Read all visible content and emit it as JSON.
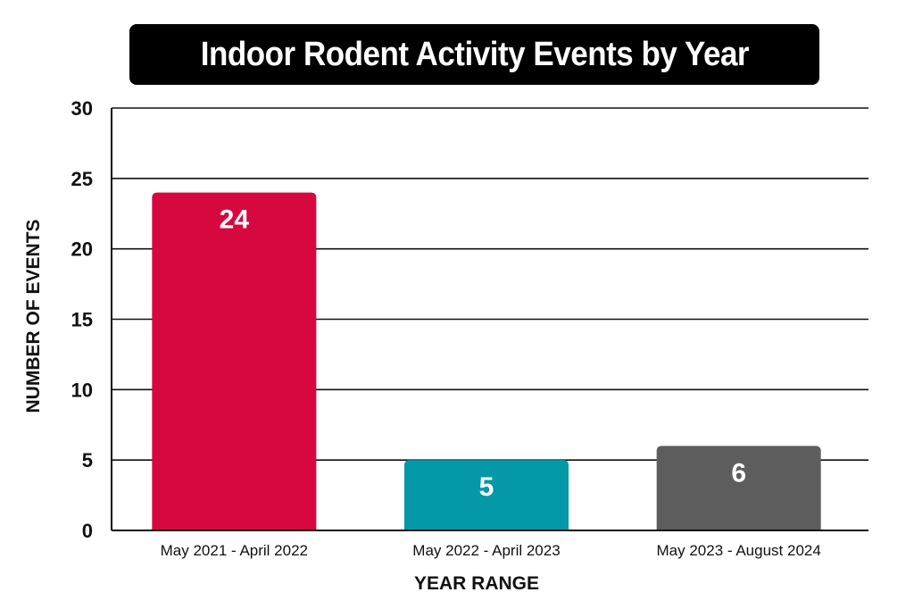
{
  "chart_data": {
    "type": "bar",
    "title": "Indoor Rodent Activity Events by Year",
    "xlabel": "YEAR RANGE",
    "ylabel": "NUMBER OF EVENTS",
    "categories": [
      "May 2021 - April 2022",
      "May 2022 - April 2023",
      "May 2023 - August 2024"
    ],
    "values": [
      24,
      5,
      6
    ],
    "data_labels": [
      "24",
      "5",
      "6"
    ],
    "colors": [
      "#d7073f",
      "#0598a8",
      "#5d5d5d"
    ],
    "ylim": [
      0,
      30
    ],
    "yticks": [
      0,
      5,
      10,
      15,
      20,
      25,
      30
    ],
    "ytick_labels": [
      "0",
      "5",
      "10",
      "15",
      "20",
      "25",
      "30"
    ],
    "grid": true,
    "legend": "none"
  }
}
